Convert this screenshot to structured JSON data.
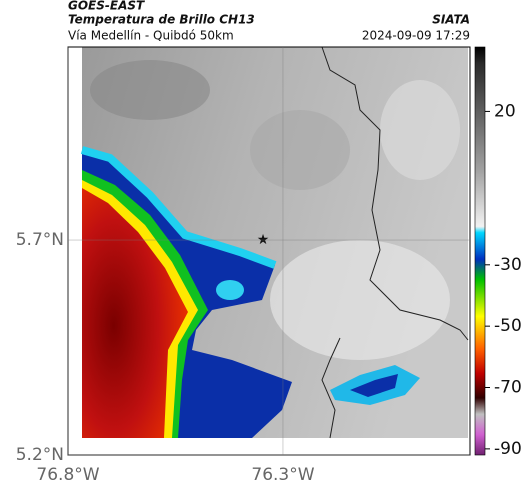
{
  "header": {
    "title": "GOES-EAST",
    "subtitle": "Temperatura de Brillo CH13",
    "route": "Vía Medellín - Quibdó 50km",
    "source": "SIATA",
    "timestamp": "2024-09-09 17:29"
  },
  "map": {
    "xlim": [
      -76.8,
      -75.865
    ],
    "ylim": [
      5.2,
      6.149
    ],
    "xticks": [
      {
        "value": -76.8,
        "label": "76.8°W"
      },
      {
        "value": -76.3,
        "label": "76.3°W"
      }
    ],
    "yticks": [
      {
        "value": 5.7,
        "label": "5.7°N"
      },
      {
        "value": 5.2,
        "label": "5.2°N"
      }
    ]
  },
  "colorbar": {
    "lim": [
      -92,
      41
    ],
    "ticks": [
      20,
      -30,
      -50,
      -70,
      -90
    ]
  }
}
